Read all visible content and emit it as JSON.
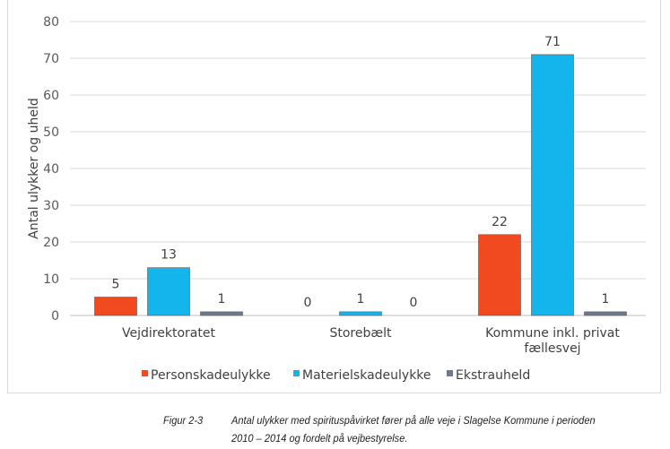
{
  "chart_data": {
    "type": "bar",
    "title": "",
    "ylabel": "Antal ulykker og uheld",
    "xlabel": "",
    "ylim": [
      0,
      80
    ],
    "yticks": [
      0,
      10,
      20,
      30,
      40,
      50,
      60,
      70,
      80
    ],
    "grid": true,
    "legend_position": "bottom",
    "categories": [
      "Vejdirektoratet",
      "Storebælt",
      "Kommune inkl. privat fællesvej"
    ],
    "category_lines": [
      [
        "Vejdirektoratet"
      ],
      [
        "Storebælt"
      ],
      [
        "Kommune inkl. privat",
        "fællesvej"
      ]
    ],
    "series": [
      {
        "name": "Personskadeulykke",
        "color": "#f04a1e",
        "values": [
          5,
          0,
          22
        ]
      },
      {
        "name": "Materielskadeulykke",
        "color": "#14b4ec",
        "values": [
          13,
          1,
          71
        ]
      },
      {
        "name": "Ekstrauheld",
        "color": "#6e7a8c",
        "values": [
          1,
          0,
          1
        ]
      }
    ]
  },
  "caption": {
    "label": "Figur 2-3",
    "line1": "Antal ulykker med spirituspåvirket fører på alle veje i Slagelse Kommune i perioden",
    "line2": "2010 – 2014 og fordelt på vejbestyrelse."
  }
}
